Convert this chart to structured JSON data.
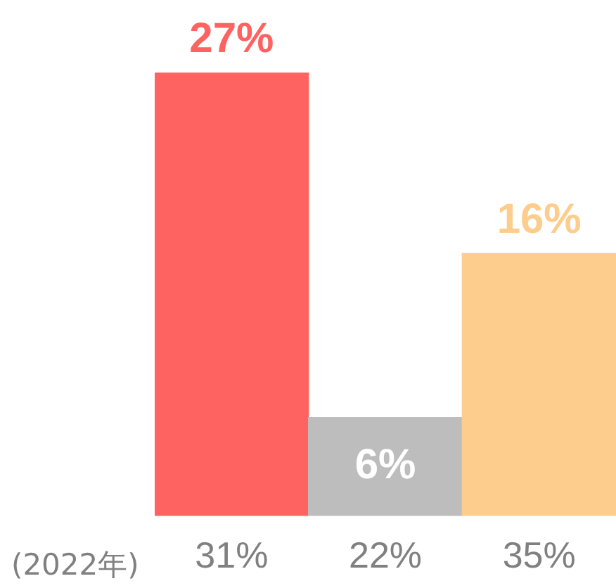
{
  "chart_data": {
    "type": "bar",
    "categories": [
      "31%",
      "22%",
      "35%"
    ],
    "values": [
      27,
      6,
      16
    ],
    "colors": [
      "#ff6361",
      "#bdbdbd",
      "#fccd8c"
    ],
    "value_labels": [
      "27%",
      "6%",
      "16%"
    ],
    "annotations": [
      "(2022年)"
    ],
    "grid": false,
    "legend": false
  }
}
